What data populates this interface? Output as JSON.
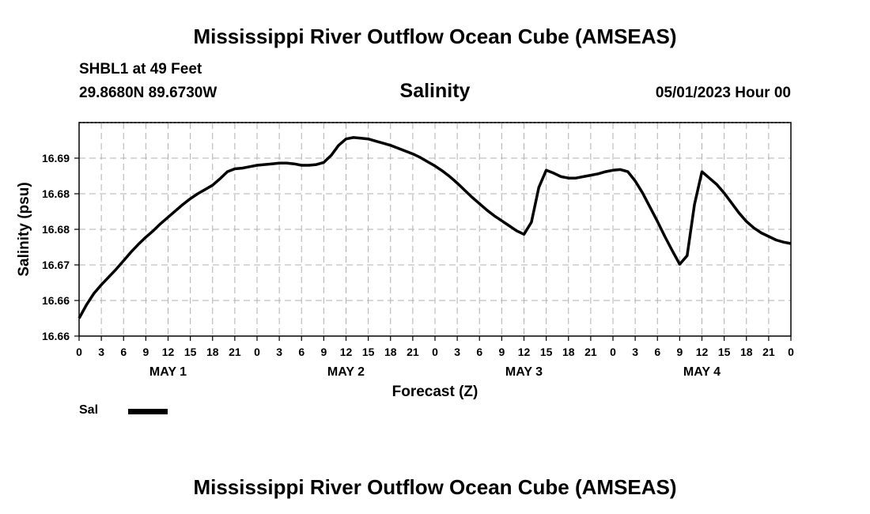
{
  "header": {
    "title_top": "Mississippi River Outflow Ocean Cube (AMSEAS)",
    "station": "SHBL1 at 49 Feet",
    "coords": "29.8680N  89.6730W",
    "datetime": "05/01/2023 Hour 00",
    "title_bottom": "Mississippi River Outflow Ocean Cube (AMSEAS)"
  },
  "chart_data": {
    "type": "line",
    "title": "Salinity",
    "xlabel": "Forecast (Z)",
    "ylabel": "Salinity (psu)",
    "ylim": [
      16.66,
      16.69
    ],
    "xlim": [
      0,
      96
    ],
    "y_ticks": [
      {
        "value": 16.66,
        "label": "16.66"
      },
      {
        "value": 16.665,
        "label": "16.66"
      },
      {
        "value": 16.67,
        "label": "16.67"
      },
      {
        "value": 16.675,
        "label": "16.68"
      },
      {
        "value": 16.68,
        "label": "16.68"
      },
      {
        "value": 16.685,
        "label": "16.69"
      }
    ],
    "x_ticks": [
      "0",
      "3",
      "6",
      "9",
      "12",
      "15",
      "18",
      "21",
      "0",
      "3",
      "6",
      "9",
      "12",
      "15",
      "18",
      "21",
      "0",
      "3",
      "6",
      "9",
      "12",
      "15",
      "18",
      "21",
      "0",
      "3",
      "6",
      "9",
      "12",
      "15",
      "18",
      "21",
      "0"
    ],
    "day_labels": [
      {
        "label": "MAY 1",
        "at_hour": 12
      },
      {
        "label": "MAY 2",
        "at_hour": 36
      },
      {
        "label": "MAY 3",
        "at_hour": 60
      },
      {
        "label": "MAY 4",
        "at_hour": 84
      }
    ],
    "grid": true,
    "legend_placement": "bottom-left",
    "series": [
      {
        "name": "Sal",
        "color": "#000000",
        "x": [
          0,
          1,
          2,
          3,
          4,
          5,
          6,
          7,
          8,
          9,
          10,
          11,
          12,
          13,
          14,
          15,
          16,
          17,
          18,
          19,
          20,
          21,
          22,
          23,
          24,
          25,
          26,
          27,
          28,
          29,
          30,
          31,
          32,
          33,
          34,
          35,
          36,
          37,
          38,
          39,
          40,
          41,
          42,
          43,
          44,
          45,
          46,
          47,
          48,
          49,
          50,
          51,
          52,
          53,
          54,
          55,
          56,
          57,
          58,
          59,
          60,
          61,
          62,
          63,
          64,
          65,
          66,
          67,
          68,
          69,
          70,
          71,
          72,
          73,
          74,
          75,
          76,
          77,
          78,
          79,
          80,
          81,
          82,
          83,
          84,
          85,
          86,
          87,
          88,
          89,
          90,
          91,
          92,
          93,
          94,
          95,
          96
        ],
        "y": [
          16.6625,
          16.6644,
          16.666,
          16.6672,
          16.6683,
          16.6694,
          16.6706,
          16.6718,
          16.6729,
          16.6739,
          16.6748,
          16.6758,
          16.6767,
          16.6776,
          16.6785,
          16.6793,
          16.68,
          16.6806,
          16.6812,
          16.6821,
          16.6831,
          16.6835,
          16.6836,
          16.6838,
          16.684,
          16.6841,
          16.6842,
          16.6843,
          16.6843,
          16.6842,
          16.684,
          16.684,
          16.6841,
          16.6844,
          16.6854,
          16.6868,
          16.6877,
          16.6879,
          16.6878,
          16.6877,
          16.6874,
          16.6871,
          16.6868,
          16.6864,
          16.686,
          16.6856,
          16.6851,
          16.6845,
          16.6839,
          16.6832,
          16.6824,
          16.6815,
          16.6805,
          16.6795,
          16.6786,
          16.6777,
          16.6769,
          16.6762,
          16.6755,
          16.6748,
          16.6743,
          16.676,
          16.6809,
          16.6833,
          16.6829,
          16.6824,
          16.6822,
          16.6822,
          16.6824,
          16.6826,
          16.6828,
          16.6831,
          16.6833,
          16.6834,
          16.6831,
          16.6818,
          16.6801,
          16.6781,
          16.6761,
          16.674,
          16.672,
          16.6701,
          16.6713,
          16.6785,
          16.6831,
          16.6822,
          16.6813,
          16.6801,
          16.6787,
          16.6773,
          16.6761,
          16.6752,
          16.6745,
          16.674,
          16.6735,
          16.6732,
          16.673
        ]
      }
    ]
  }
}
